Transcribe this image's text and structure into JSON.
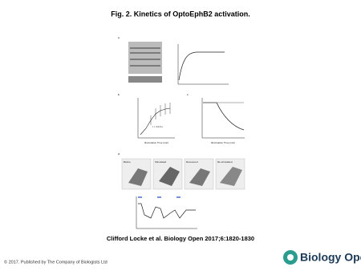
{
  "header": {
    "title": "Fig. 2. Kinetics of OptoEphB2 activation."
  },
  "figure": {
    "panels": [
      {
        "letter": "a"
      },
      {
        "letter": "b",
        "annotation": "τ = 14.9 s",
        "x_label": "Illumination Time (min)"
      },
      {
        "letter": "c",
        "x_label": "Illumination Time (min)"
      },
      {
        "letter": "d",
        "images": [
          "Before",
          "Stimulated",
          "Recovered",
          "Re-stimulated"
        ]
      }
    ]
  },
  "caption": "Clifford Locke et al. Biology Open 2017;6:1820-1830",
  "footer": {
    "copyright": "© 2017. Published by The Company of Biologists Ltd",
    "logo": "Biology Open"
  }
}
